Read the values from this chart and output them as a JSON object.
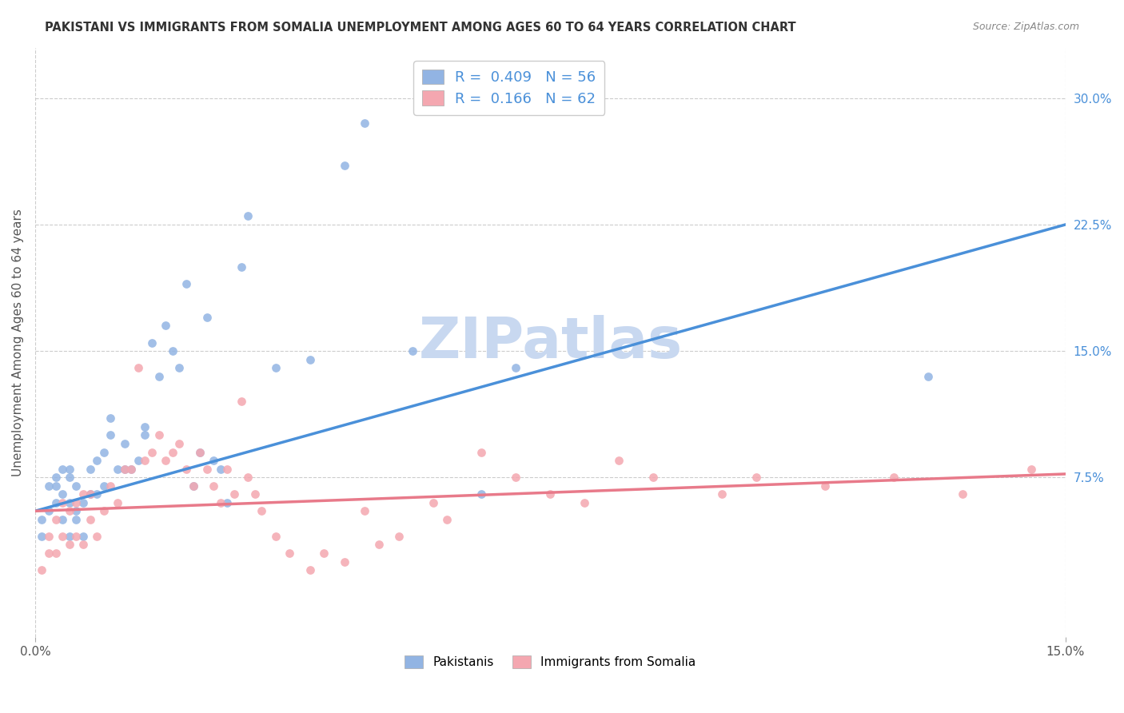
{
  "title": "PAKISTANI VS IMMIGRANTS FROM SOMALIA UNEMPLOYMENT AMONG AGES 60 TO 64 YEARS CORRELATION CHART",
  "source": "Source: ZipAtlas.com",
  "ylabel": "Unemployment Among Ages 60 to 64 years",
  "watermark": "ZIPatlas",
  "xlim": [
    0.0,
    0.15
  ],
  "ylim": [
    -0.02,
    0.33
  ],
  "blue_R": "0.409",
  "blue_N": "56",
  "pink_R": "0.166",
  "pink_N": "62",
  "blue_color": "#92b4e3",
  "pink_color": "#f4a7b0",
  "blue_line_color": "#4a90d9",
  "pink_line_color": "#e87a8a",
  "title_color": "#333333",
  "legend_label_blue": "Pakistanis",
  "legend_label_pink": "Immigrants from Somalia",
  "blue_scatter_x": [
    0.001,
    0.002,
    0.002,
    0.003,
    0.003,
    0.003,
    0.004,
    0.004,
    0.004,
    0.005,
    0.005,
    0.005,
    0.005,
    0.006,
    0.006,
    0.006,
    0.007,
    0.007,
    0.008,
    0.008,
    0.009,
    0.009,
    0.01,
    0.01,
    0.011,
    0.011,
    0.012,
    0.013,
    0.013,
    0.014,
    0.015,
    0.016,
    0.016,
    0.017,
    0.018,
    0.019,
    0.02,
    0.021,
    0.022,
    0.023,
    0.024,
    0.025,
    0.026,
    0.027,
    0.028,
    0.03,
    0.031,
    0.035,
    0.04,
    0.045,
    0.048,
    0.055,
    0.065,
    0.07,
    0.13,
    0.001
  ],
  "blue_scatter_y": [
    0.04,
    0.055,
    0.07,
    0.06,
    0.07,
    0.075,
    0.05,
    0.065,
    0.08,
    0.04,
    0.06,
    0.075,
    0.08,
    0.05,
    0.055,
    0.07,
    0.04,
    0.06,
    0.065,
    0.08,
    0.065,
    0.085,
    0.07,
    0.09,
    0.1,
    0.11,
    0.08,
    0.08,
    0.095,
    0.08,
    0.085,
    0.1,
    0.105,
    0.155,
    0.135,
    0.165,
    0.15,
    0.14,
    0.19,
    0.07,
    0.09,
    0.17,
    0.085,
    0.08,
    0.06,
    0.2,
    0.23,
    0.14,
    0.145,
    0.26,
    0.285,
    0.15,
    0.065,
    0.14,
    0.135,
    0.05
  ],
  "pink_scatter_x": [
    0.001,
    0.002,
    0.002,
    0.003,
    0.003,
    0.004,
    0.004,
    0.005,
    0.005,
    0.006,
    0.006,
    0.007,
    0.007,
    0.008,
    0.008,
    0.009,
    0.01,
    0.011,
    0.012,
    0.013,
    0.014,
    0.015,
    0.016,
    0.017,
    0.018,
    0.019,
    0.02,
    0.021,
    0.022,
    0.023,
    0.024,
    0.025,
    0.026,
    0.027,
    0.028,
    0.029,
    0.03,
    0.031,
    0.032,
    0.033,
    0.035,
    0.037,
    0.04,
    0.042,
    0.045,
    0.048,
    0.05,
    0.053,
    0.058,
    0.06,
    0.065,
    0.07,
    0.075,
    0.08,
    0.085,
    0.09,
    0.1,
    0.105,
    0.115,
    0.125,
    0.135,
    0.145
  ],
  "pink_scatter_y": [
    0.02,
    0.03,
    0.04,
    0.03,
    0.05,
    0.04,
    0.06,
    0.035,
    0.055,
    0.04,
    0.06,
    0.035,
    0.065,
    0.05,
    0.065,
    0.04,
    0.055,
    0.07,
    0.06,
    0.08,
    0.08,
    0.14,
    0.085,
    0.09,
    0.1,
    0.085,
    0.09,
    0.095,
    0.08,
    0.07,
    0.09,
    0.08,
    0.07,
    0.06,
    0.08,
    0.065,
    0.12,
    0.075,
    0.065,
    0.055,
    0.04,
    0.03,
    0.02,
    0.03,
    0.025,
    0.055,
    0.035,
    0.04,
    0.06,
    0.05,
    0.09,
    0.075,
    0.065,
    0.06,
    0.085,
    0.075,
    0.065,
    0.075,
    0.07,
    0.075,
    0.065,
    0.08
  ],
  "blue_trendline_x": [
    0.0,
    0.15
  ],
  "blue_trendline_y": [
    0.055,
    0.225
  ],
  "pink_trendline_x": [
    0.0,
    0.15
  ],
  "pink_trendline_y": [
    0.055,
    0.077
  ],
  "ytick_positions": [
    0.075,
    0.15,
    0.225,
    0.3
  ],
  "ytick_labels": [
    "7.5%",
    "15.0%",
    "22.5%",
    "30.0%"
  ],
  "grid_color": "#cccccc",
  "background_color": "#ffffff",
  "watermark_color": "#c8d8f0",
  "watermark_fontsize": 52
}
